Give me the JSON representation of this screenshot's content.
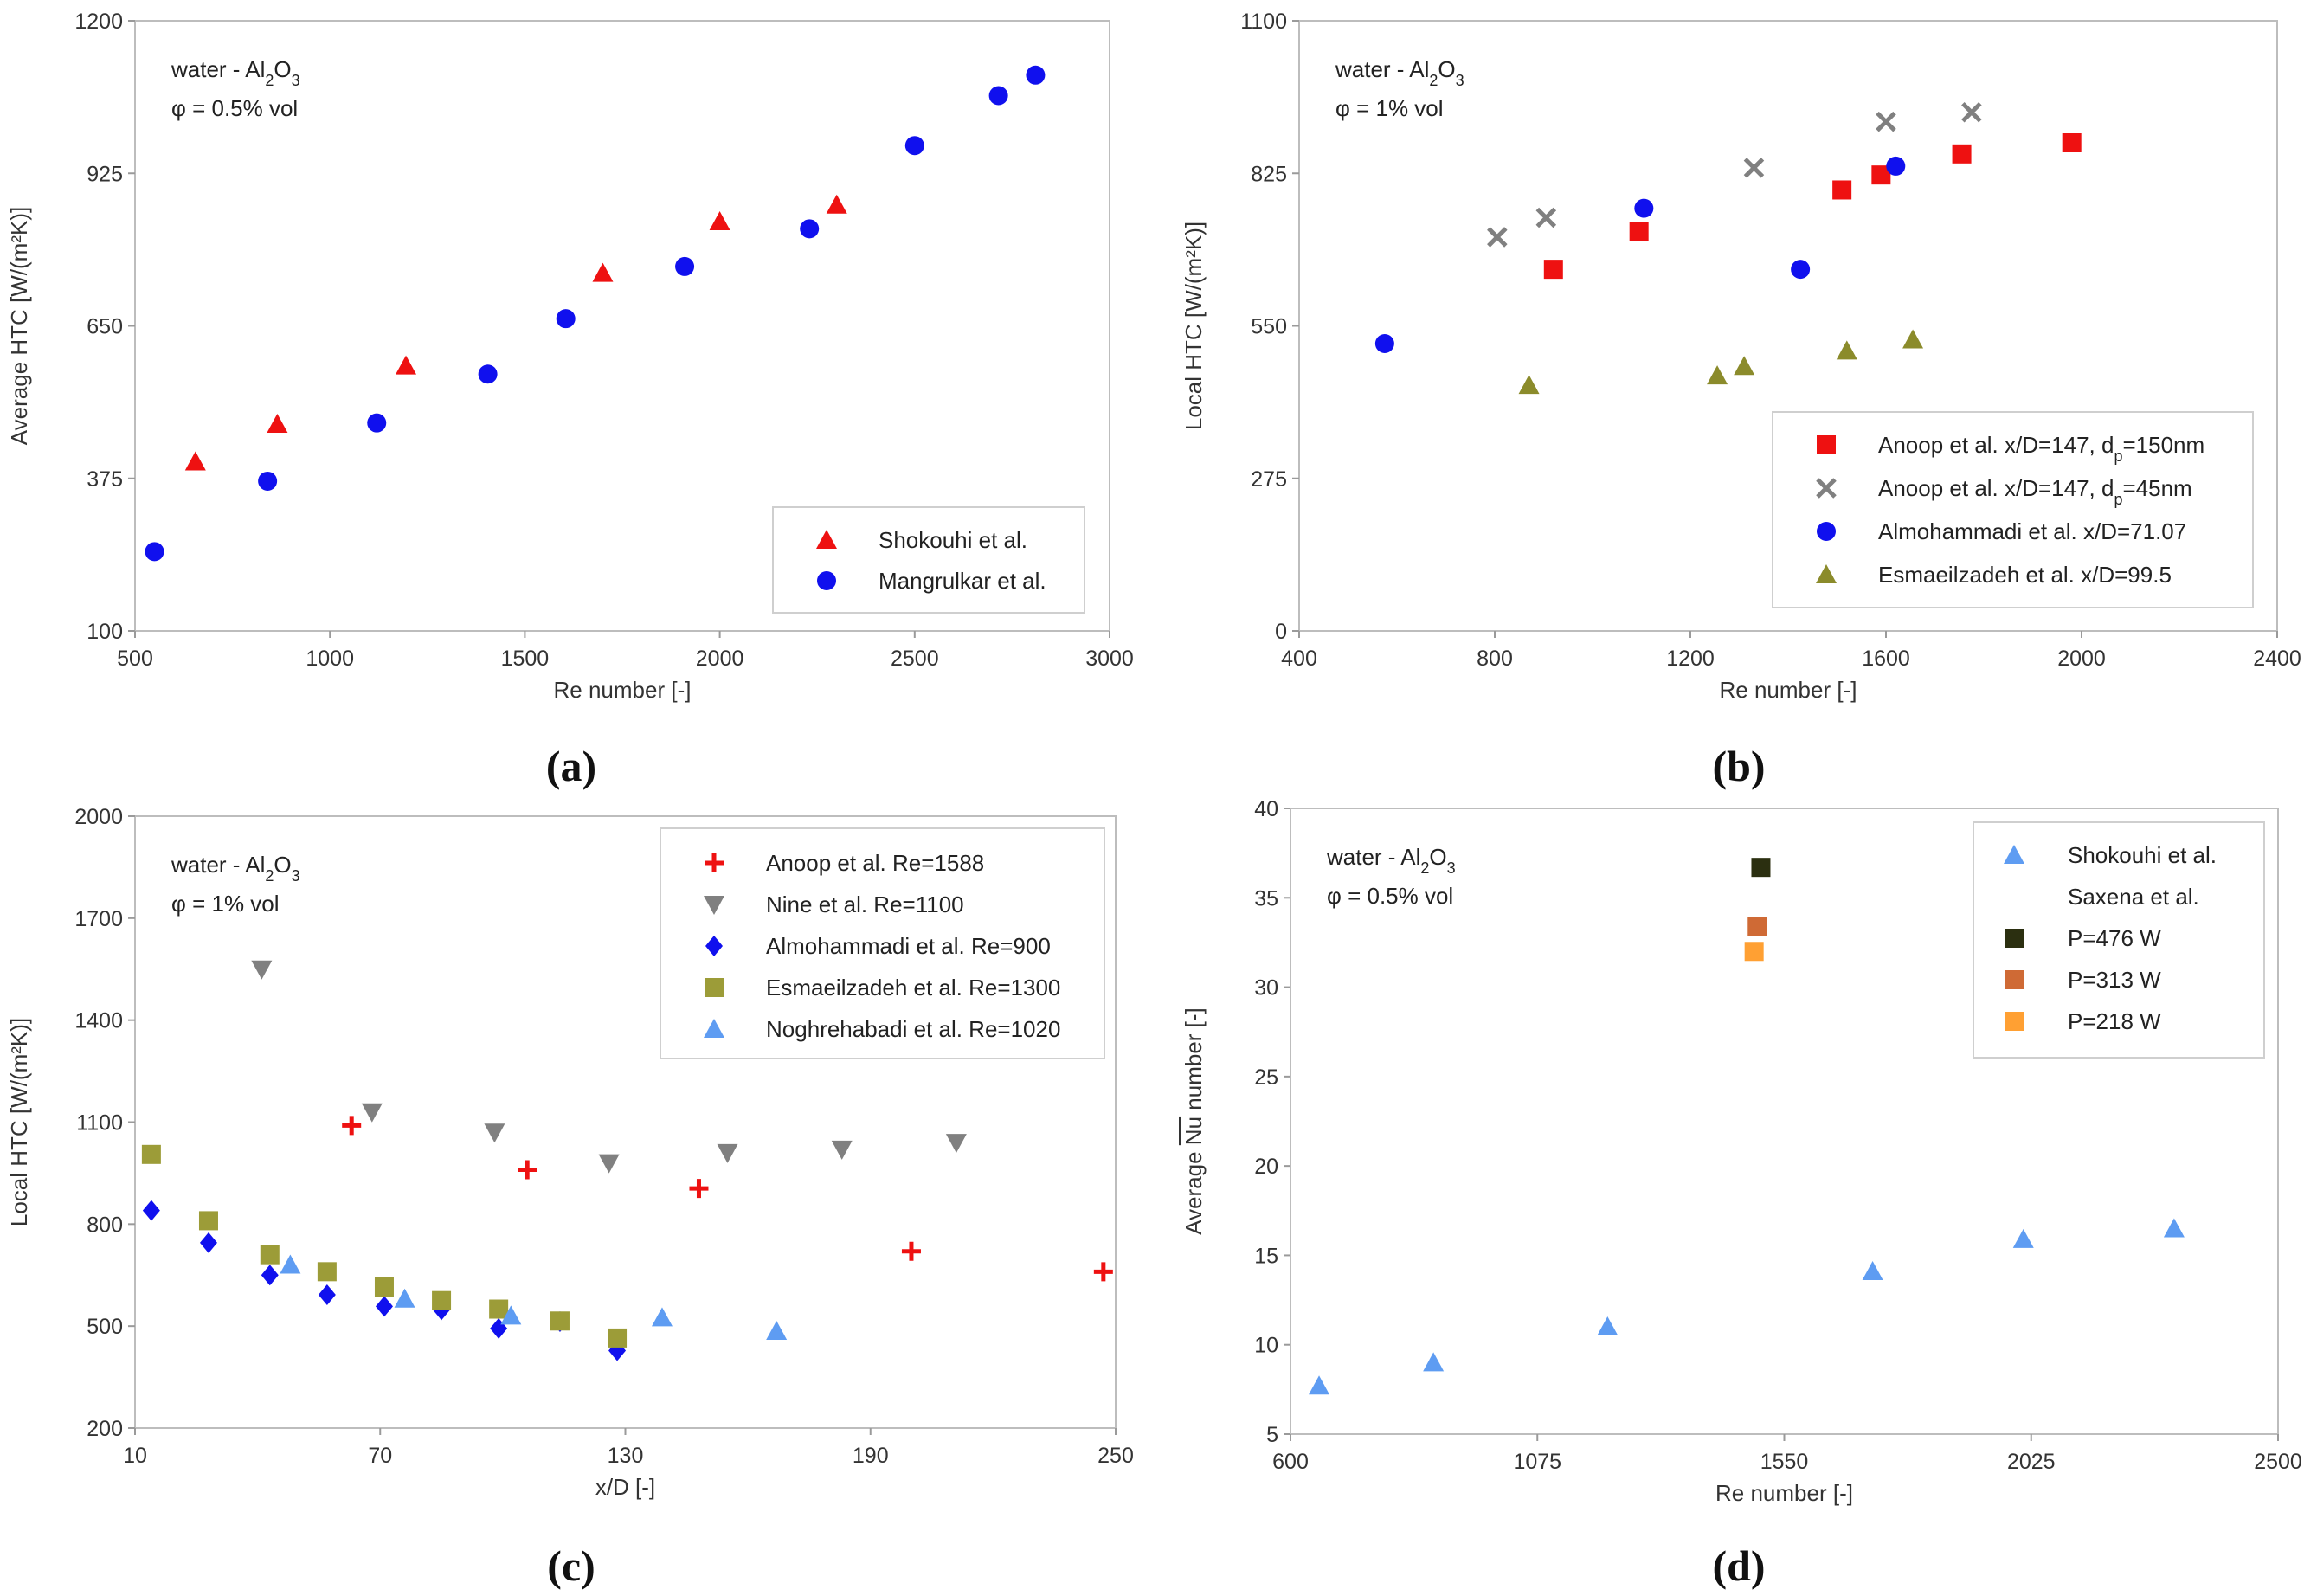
{
  "chart_data": [
    {
      "panel": "(a)",
      "type": "scatter",
      "xlabel": "Re number [-]",
      "ylabel": "Average HTC [W/(m²K)]",
      "xlim": [
        500,
        3000
      ],
      "ylim": [
        100,
        1200
      ],
      "xticks": [
        "500",
        "1000",
        "1500",
        "2000",
        "2500",
        "3000"
      ],
      "yticks": [
        "100",
        "375",
        "650",
        "925",
        "1200"
      ],
      "annotation": {
        "fluid": "water - Al",
        "sub": "2",
        "mid": "O",
        "sub2": "3",
        "conc": "φ = 0.5% vol"
      },
      "legend_position": "bottom-right",
      "series": [
        {
          "name": "Shokouhi et al.",
          "marker": "triangle",
          "color": "#ee1111",
          "x": [
            655,
            865,
            1195,
            1700,
            2000,
            2300
          ],
          "y": [
            405,
            473,
            578,
            745,
            838,
            868
          ]
        },
        {
          "name": "Mangrulkar et al.",
          "marker": "circle",
          "color": "#1010ee",
          "x": [
            550,
            840,
            1120,
            1405,
            1605,
            1910,
            2230,
            2500,
            2715,
            2810
          ],
          "y": [
            243,
            370,
            475,
            563,
            663,
            757,
            825,
            975,
            1065,
            1102
          ]
        }
      ]
    },
    {
      "panel": "(b)",
      "type": "scatter",
      "xlabel": "Re number [-]",
      "ylabel": "Local HTC [W/(m²K)]",
      "xlim": [
        400,
        2400
      ],
      "ylim": [
        0,
        1100
      ],
      "xticks": [
        "400",
        "800",
        "1200",
        "1600",
        "2000",
        "2400"
      ],
      "yticks": [
        "0",
        "275",
        "550",
        "825",
        "1100"
      ],
      "annotation": {
        "fluid": "water - Al",
        "sub": "2",
        "mid": "O",
        "sub2": "3",
        "conc": "φ = 1% vol"
      },
      "legend_position": "bottom-right",
      "series": [
        {
          "name": "Anoop et al. x/D=147, d",
          "name_sub": "p",
          "name_tail": "=150nm",
          "marker": "square",
          "color": "#ee1111",
          "x": [
            920,
            1095,
            1510,
            1590,
            1755,
            1980
          ],
          "y": [
            652,
            720,
            795,
            822,
            860,
            880
          ]
        },
        {
          "name": "Anoop et al. x/D=147, d",
          "name_sub": "p",
          "name_tail": "=45nm",
          "marker": "cross",
          "color": "#808080",
          "x": [
            805,
            905,
            1330,
            1600,
            1775
          ],
          "y": [
            710,
            745,
            835,
            918,
            935
          ]
        },
        {
          "name": "Almohammadi et al. x/D=71.07",
          "marker": "circle",
          "color": "#1010ee",
          "x": [
            575,
            1105,
            1425,
            1620
          ],
          "y": [
            518,
            762,
            652,
            838
          ]
        },
        {
          "name": "Esmaeilzadeh et al. x/D=99.5",
          "marker": "triangle",
          "color": "#8b8b2b",
          "x": [
            870,
            1255,
            1310,
            1520,
            1655
          ],
          "y": [
            443,
            460,
            477,
            505,
            525
          ]
        }
      ]
    },
    {
      "panel": "(c)",
      "type": "scatter",
      "xlabel": "x/D [-]",
      "ylabel": "Local HTC [W/(m²K)]",
      "xlim": [
        10,
        250
      ],
      "ylim": [
        200,
        2000
      ],
      "xticks": [
        "10",
        "70",
        "130",
        "190",
        "250"
      ],
      "yticks": [
        "200",
        "500",
        "800",
        "1100",
        "1400",
        "1700",
        "2000"
      ],
      "annotation": {
        "fluid": "water - Al",
        "sub": "2",
        "mid": "O",
        "sub2": "3",
        "conc": "φ = 1% vol"
      },
      "legend_position": "top-right",
      "series": [
        {
          "name": "Anoop et al. Re=1588",
          "marker": "plus",
          "color": "#ee1111",
          "x": [
            63,
            106,
            148,
            200,
            247
          ],
          "y": [
            1090,
            960,
            905,
            720,
            660
          ]
        },
        {
          "name": "Nine et al. Re=1100",
          "marker": "down-triangle",
          "color": "#808080",
          "x": [
            41,
            68,
            98,
            126,
            155,
            183,
            211
          ],
          "y": [
            1550,
            1130,
            1070,
            980,
            1010,
            1020,
            1040
          ]
        },
        {
          "name": "Almohammadi et al. Re=900",
          "marker": "diamond",
          "color": "#1010ee",
          "x": [
            14,
            28,
            43,
            57,
            71,
            85,
            99,
            114,
            128
          ],
          "y": [
            840,
            745,
            650,
            592,
            558,
            548,
            493,
            513,
            428
          ]
        },
        {
          "name": "Esmaeilzadeh et al. Re=1300",
          "marker": "square",
          "color": "#9c9c38",
          "x": [
            14,
            28,
            43,
            57,
            71,
            85,
            99,
            114,
            128
          ],
          "y": [
            1005,
            810,
            710,
            660,
            615,
            575,
            550,
            515,
            465
          ]
        },
        {
          "name": "Noghrehabadi et al. Re=1020",
          "marker": "triangle",
          "color": "#5e9cf2",
          "x": [
            48,
            76,
            102,
            139,
            167
          ],
          "y": [
            680,
            580,
            530,
            525,
            485
          ]
        }
      ]
    },
    {
      "panel": "(d)",
      "type": "scatter",
      "xlabel": "Re number [-]",
      "ylabel": "Average Nu number [-]",
      "xlim": [
        600,
        2500
      ],
      "ylim": [
        5,
        40
      ],
      "xticks": [
        "600",
        "1075",
        "1550",
        "2025",
        "2500"
      ],
      "yticks": [
        "5",
        "10",
        "15",
        "20",
        "25",
        "30",
        "35",
        "40"
      ],
      "annotation": {
        "fluid": "water - Al",
        "sub": "2",
        "mid": "O",
        "sub2": "3",
        "conc": "φ = 0.5% vol"
      },
      "legend_position": "top-right",
      "legend_group": "Saxena et al.",
      "series": [
        {
          "name": "Shokouhi et al.",
          "marker": "triangle",
          "color": "#5e9cf2",
          "x": [
            655,
            875,
            1210,
            1720,
            2010,
            2300
          ],
          "y": [
            7.7,
            9.0,
            11.0,
            14.1,
            15.9,
            16.5
          ]
        },
        {
          "name": "P=476 W",
          "marker": "square",
          "color": "#2b2f10",
          "x": [
            1505
          ],
          "y": [
            36.7
          ]
        },
        {
          "name": "P=313 W",
          "marker": "square",
          "color": "#cf6a35",
          "x": [
            1498
          ],
          "y": [
            33.4
          ]
        },
        {
          "name": "P=218 W",
          "marker": "square",
          "color": "#ffa033",
          "x": [
            1492
          ],
          "y": [
            32.0
          ]
        }
      ]
    }
  ],
  "labels": {
    "a": "(a)",
    "b": "(b)",
    "c": "(c)",
    "d": "(d)",
    "nu_prefix": "Average ",
    "nu_symbol": "Nu",
    "nu_suffix": " number [-]"
  }
}
